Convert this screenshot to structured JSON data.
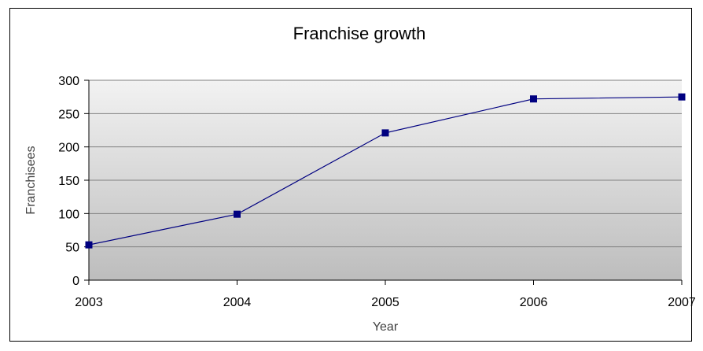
{
  "chart_data": {
    "type": "line",
    "title": "Franchise growth",
    "xlabel": "Year",
    "ylabel": "Franchisees",
    "categories": [
      "2003",
      "2004",
      "2005",
      "2006",
      "2007"
    ],
    "series": [
      {
        "values": [
          53,
          99,
          221,
          272,
          275
        ],
        "color": "#000080"
      }
    ],
    "ylim": [
      0,
      300
    ],
    "yticks": [
      0,
      50,
      100,
      150,
      200,
      250,
      300
    ],
    "grid": true,
    "legend": "none"
  }
}
